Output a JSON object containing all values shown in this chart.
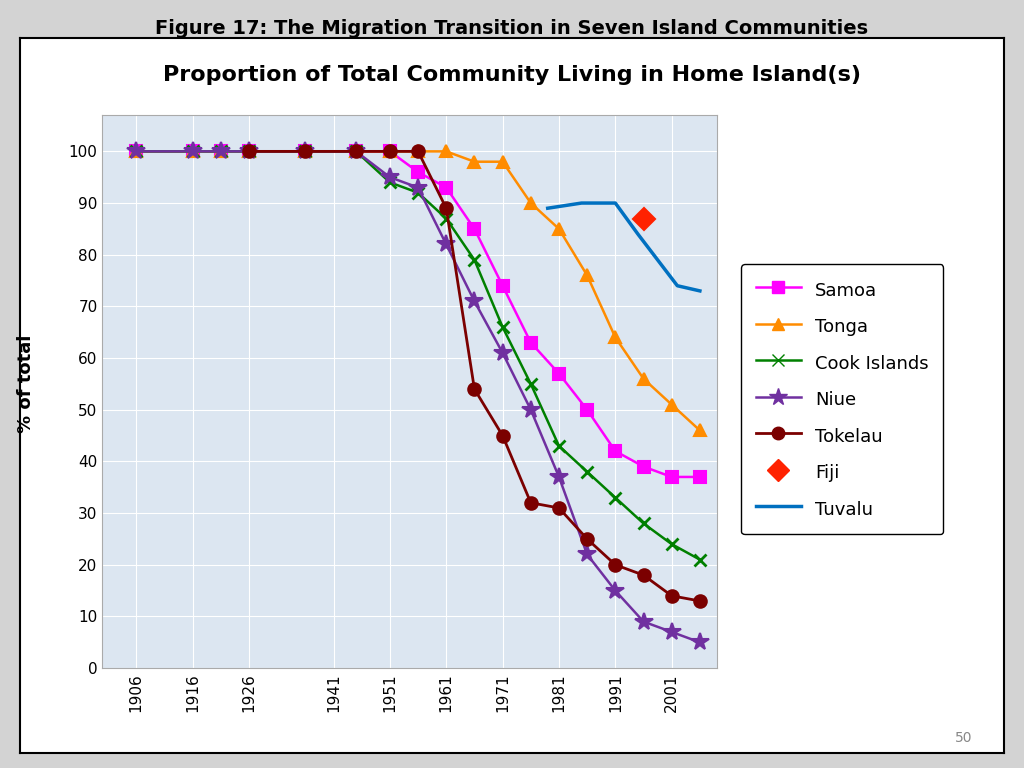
{
  "title": "Figure 17: The Migration Transition in Seven Island Communities",
  "subtitle": "Proportion of Total Community Living in Home Island(s)",
  "ylabel": "% of total",
  "page_number": "50",
  "outer_bg": "#d3d3d3",
  "inner_bg": "#ffffff",
  "plot_bg_color": "#dce6f1",
  "series": [
    {
      "name": "Samoa",
      "color": "#ff00ff",
      "marker": "s",
      "linestyle": "-",
      "x": [
        1906,
        1916,
        1921,
        1926,
        1936,
        1945,
        1951,
        1956,
        1961,
        1966,
        1971,
        1976,
        1981,
        1986,
        1991,
        1996,
        2001,
        2006
      ],
      "y": [
        100,
        100,
        100,
        100,
        100,
        100,
        100,
        96,
        93,
        85,
        74,
        63,
        57,
        50,
        42,
        39,
        37,
        37
      ]
    },
    {
      "name": "Tonga",
      "color": "#ff8c00",
      "marker": "^",
      "linestyle": "-",
      "x": [
        1906,
        1916,
        1921,
        1926,
        1936,
        1945,
        1951,
        1956,
        1961,
        1966,
        1971,
        1976,
        1981,
        1986,
        1991,
        1996,
        2001,
        2006
      ],
      "y": [
        100,
        100,
        100,
        100,
        100,
        100,
        100,
        100,
        100,
        98,
        98,
        90,
        85,
        76,
        64,
        56,
        51,
        46
      ]
    },
    {
      "name": "Cook Islands",
      "color": "#008000",
      "marker": "x",
      "linestyle": "-",
      "x": [
        1906,
        1916,
        1921,
        1926,
        1936,
        1945,
        1951,
        1956,
        1961,
        1966,
        1971,
        1976,
        1981,
        1986,
        1991,
        1996,
        2001,
        2006
      ],
      "y": [
        100,
        100,
        100,
        100,
        100,
        100,
        94,
        92,
        87,
        79,
        66,
        55,
        43,
        38,
        33,
        28,
        24,
        21
      ]
    },
    {
      "name": "Niue",
      "color": "#7030a0",
      "marker": "*",
      "linestyle": "-",
      "x": [
        1906,
        1916,
        1921,
        1926,
        1936,
        1945,
        1951,
        1956,
        1961,
        1966,
        1971,
        1976,
        1981,
        1986,
        1991,
        1996,
        2001,
        2006
      ],
      "y": [
        100,
        100,
        100,
        100,
        100,
        100,
        95,
        93,
        82,
        71,
        61,
        50,
        37,
        22,
        15,
        9,
        7,
        5
      ]
    },
    {
      "name": "Tokelau",
      "color": "#7b0000",
      "marker": "o",
      "linestyle": "-",
      "x": [
        1926,
        1936,
        1945,
        1951,
        1956,
        1961,
        1966,
        1971,
        1976,
        1981,
        1986,
        1991,
        1996,
        2001,
        2006
      ],
      "y": [
        100,
        100,
        100,
        100,
        100,
        89,
        54,
        45,
        32,
        31,
        25,
        20,
        18,
        14,
        13
      ]
    },
    {
      "name": "Fiji",
      "color": "#ff2200",
      "marker": "D",
      "linestyle": "none",
      "x": [
        1996
      ],
      "y": [
        87
      ]
    },
    {
      "name": "Tuvalu",
      "color": "#0070c0",
      "marker": "none",
      "linestyle": "-",
      "x": [
        1979,
        1985,
        1991,
        1995,
        2002,
        2006
      ],
      "y": [
        89,
        90,
        90,
        84,
        74,
        73
      ]
    }
  ],
  "xticks": [
    1906,
    1916,
    1926,
    1941,
    1951,
    1961,
    1971,
    1981,
    1991,
    2001
  ],
  "xtick_labels": [
    "1906",
    "1916",
    "1926",
    "1941",
    "1951",
    "1961",
    "1971",
    "1981",
    "1991",
    "2001"
  ],
  "yticks": [
    0,
    10,
    20,
    30,
    40,
    50,
    60,
    70,
    80,
    90,
    100
  ],
  "ylim": [
    0,
    107
  ],
  "xlim": [
    1900,
    2009
  ]
}
